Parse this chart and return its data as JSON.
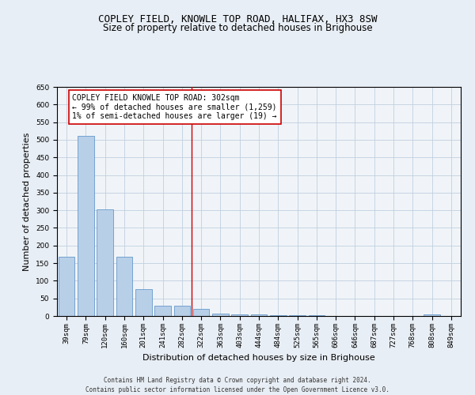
{
  "title": "COPLEY FIELD, KNOWLE TOP ROAD, HALIFAX, HX3 8SW",
  "subtitle": "Size of property relative to detached houses in Brighouse",
  "xlabel": "Distribution of detached houses by size in Brighouse",
  "ylabel": "Number of detached properties",
  "categories": [
    "39sqm",
    "79sqm",
    "120sqm",
    "160sqm",
    "201sqm",
    "241sqm",
    "282sqm",
    "322sqm",
    "363sqm",
    "403sqm",
    "444sqm",
    "484sqm",
    "525sqm",
    "565sqm",
    "606sqm",
    "646sqm",
    "687sqm",
    "727sqm",
    "768sqm",
    "808sqm",
    "849sqm"
  ],
  "values": [
    168,
    510,
    302,
    168,
    77,
    30,
    30,
    20,
    7,
    5,
    4,
    3,
    3,
    3,
    0,
    0,
    0,
    0,
    0,
    4,
    0
  ],
  "bar_color": "#b8cfe8",
  "bar_edge_color": "#6699cc",
  "vline_x_index": 7,
  "vline_color": "#cc0000",
  "annotation_text": "COPLEY FIELD KNOWLE TOP ROAD: 302sqm\n← 99% of detached houses are smaller (1,259)\n1% of semi-detached houses are larger (19) →",
  "annotation_box_color": "#cc0000",
  "ylim": [
    0,
    650
  ],
  "yticks": [
    0,
    50,
    100,
    150,
    200,
    250,
    300,
    350,
    400,
    450,
    500,
    550,
    600,
    650
  ],
  "bg_color": "#e8eef5",
  "plot_bg_color": "#f0f4f8",
  "grid_color": "#c0cfe0",
  "footer": "Contains HM Land Registry data © Crown copyright and database right 2024.\nContains public sector information licensed under the Open Government Licence v3.0.",
  "title_fontsize": 9,
  "subtitle_fontsize": 8.5,
  "tick_fontsize": 6.5,
  "ylabel_fontsize": 8,
  "xlabel_fontsize": 8,
  "annotation_fontsize": 7,
  "footer_fontsize": 5.5
}
